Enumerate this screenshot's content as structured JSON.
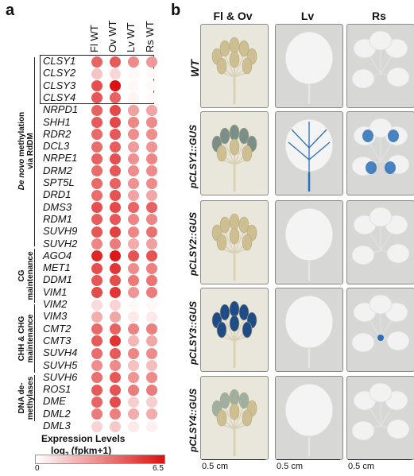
{
  "panel_a": {
    "letter": "a",
    "columns": [
      "Fl WT",
      "Ov WT",
      "Lv WT",
      "Rs WT"
    ],
    "groups": [
      {
        "label": "De novo methylation via RdDM",
        "line1_italic": "De novo",
        "line1_rest": " methylation",
        "line2": "via RdDM"
      },
      {
        "label": "CG maintenance",
        "line1": "CG",
        "line2": "maintenance"
      },
      {
        "label": "CHH & CHG maintenance",
        "line1": "CHH & CHG",
        "line2": "maintenance"
      },
      {
        "label": "DNA de-methylases",
        "line1": "DNA de-",
        "line2": "methylases"
      }
    ],
    "legend": {
      "title": "Expression Levels",
      "subtitle_prefix": "log",
      "subtitle_sub": "2",
      "subtitle_suffix": " (fpkm+1)",
      "min_label": "0",
      "max_label": "6.5",
      "min_value": 0,
      "max_value": 6.5,
      "color_low": "#ffffff",
      "color_high": "#dd1111"
    }
  },
  "chart_data": {
    "type": "heatmap",
    "columns": [
      "Fl WT",
      "Ov WT",
      "Lv WT",
      "Rs WT"
    ],
    "rows": [
      "CLSY1",
      "CLSY2",
      "CLSY3",
      "CLSY4",
      "NRPD1",
      "SHH1",
      "RDR2",
      "DCL3",
      "NRPE1",
      "DRM2",
      "SPT5L",
      "DRD1",
      "DMS3",
      "RDM1",
      "SUVH9",
      "SUVH2",
      "AGO4",
      "MET1",
      "DDM1",
      "VIM1",
      "VIM2",
      "VIM3",
      "CMT2",
      "CMT3",
      "SUVH4",
      "SUVH5",
      "SUVH6",
      "ROS1",
      "DME",
      "DML2",
      "DML3"
    ],
    "values": [
      [
        4.2,
        4.5,
        3.2,
        2.8
      ],
      [
        1.6,
        1.1,
        0.2,
        0.2
      ],
      [
        4.8,
        6.5,
        0.2,
        0.2
      ],
      [
        4.6,
        4.3,
        0.3,
        0.2
      ],
      [
        4.3,
        5.0,
        2.6,
        2.5
      ],
      [
        4.5,
        5.0,
        3.3,
        3.2
      ],
      [
        4.1,
        4.6,
        3.1,
        3.1
      ],
      [
        4.0,
        4.4,
        2.7,
        2.9
      ],
      [
        4.3,
        4.8,
        3.0,
        3.3
      ],
      [
        4.0,
        4.6,
        3.1,
        3.2
      ],
      [
        4.1,
        4.3,
        3.0,
        3.2
      ],
      [
        4.0,
        4.7,
        2.5,
        2.4
      ],
      [
        4.8,
        5.0,
        4.2,
        4.3
      ],
      [
        4.4,
        4.6,
        3.3,
        3.3
      ],
      [
        4.6,
        5.2,
        3.3,
        3.9
      ],
      [
        3.3,
        3.6,
        2.3,
        2.6
      ],
      [
        5.9,
        6.3,
        4.7,
        4.7
      ],
      [
        4.8,
        5.5,
        3.1,
        3.5
      ],
      [
        4.6,
        4.9,
        3.7,
        3.8
      ],
      [
        4.9,
        5.5,
        2.9,
        3.6
      ],
      [
        1.0,
        1.2,
        0.2,
        0.2
      ],
      [
        2.2,
        2.4,
        0.6,
        0.6
      ],
      [
        4.1,
        4.3,
        3.4,
        3.5
      ],
      [
        4.5,
        5.6,
        2.0,
        2.4
      ],
      [
        4.0,
        4.5,
        3.3,
        3.2
      ],
      [
        3.1,
        3.2,
        1.7,
        1.8
      ],
      [
        3.9,
        4.6,
        2.9,
        3.2
      ],
      [
        4.5,
        4.7,
        3.6,
        3.6
      ],
      [
        4.2,
        4.9,
        1.3,
        1.3
      ],
      [
        3.6,
        3.5,
        2.3,
        2.3
      ],
      [
        1.2,
        1.5,
        0.6,
        0.4
      ]
    ],
    "title": "",
    "xlabel": "",
    "ylabel": "",
    "color_range": [
      0,
      6.5
    ]
  },
  "panel_b": {
    "letter": "b",
    "columns": [
      "Fl & Ov",
      "Lv",
      "Rs"
    ],
    "rows": [
      "WT",
      "pCLSY1::GUS",
      "pCLSY2::GUS",
      "pCLSY3::GUS",
      "pCLSY4::GUS"
    ],
    "scale_bar": "0.5 cm"
  }
}
